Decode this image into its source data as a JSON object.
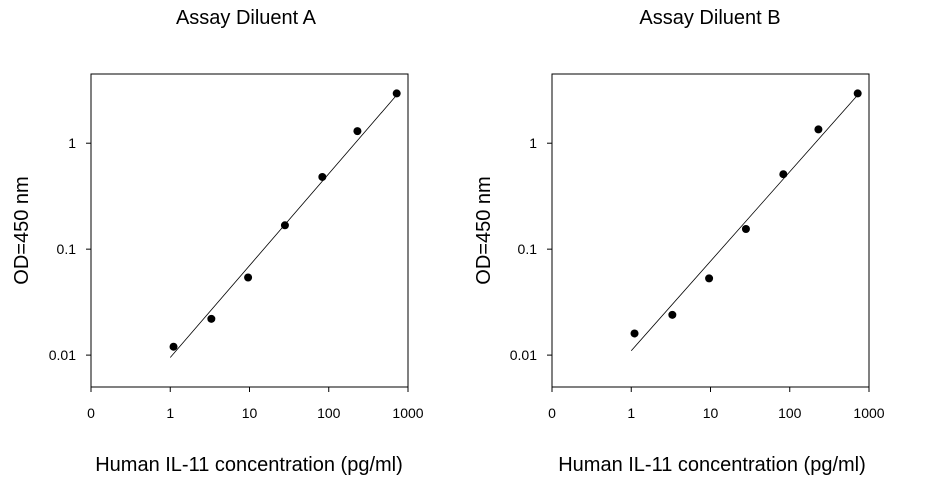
{
  "chart_data": [
    {
      "type": "scatter",
      "title": "Assay Diluent A",
      "xlabel": "Human IL-11 concentration (pg/ml)",
      "ylabel": "OD=450 nm",
      "x_scale": "log",
      "y_scale": "log",
      "x_tick_labels": [
        "0",
        "1",
        "10",
        "100",
        "1000"
      ],
      "y_tick_labels": [
        "0.01",
        "0.1",
        "1"
      ],
      "xlim": [
        0.1,
        1000
      ],
      "ylim": [
        0.005,
        4.5
      ],
      "grid": false,
      "legend": "none",
      "series": [
        {
          "x": [
            1.1,
            3.3,
            9.6,
            28,
            83,
            230,
            720
          ],
          "y": [
            0.012,
            0.022,
            0.054,
            0.168,
            0.48,
            1.3,
            2.95
          ]
        }
      ],
      "fit_line": {
        "x": [
          1.0,
          720
        ],
        "y": [
          0.0095,
          2.85
        ]
      }
    },
    {
      "type": "scatter",
      "title": "Assay Diluent B",
      "xlabel": "Human IL-11 concentration (pg/ml)",
      "ylabel": "OD=450 nm",
      "x_scale": "log",
      "y_scale": "log",
      "x_tick_labels": [
        "0",
        "1",
        "10",
        "100",
        "1000"
      ],
      "y_tick_labels": [
        "0.01",
        "0.1",
        "1"
      ],
      "xlim": [
        0.1,
        1000
      ],
      "ylim": [
        0.005,
        4.5
      ],
      "grid": false,
      "legend": "none",
      "series": [
        {
          "x": [
            1.1,
            3.3,
            9.6,
            28,
            83,
            230,
            720
          ],
          "y": [
            0.016,
            0.024,
            0.053,
            0.155,
            0.51,
            1.35,
            2.95
          ]
        }
      ],
      "fit_line": {
        "x": [
          1.0,
          720
        ],
        "y": [
          0.011,
          2.85
        ]
      }
    }
  ]
}
